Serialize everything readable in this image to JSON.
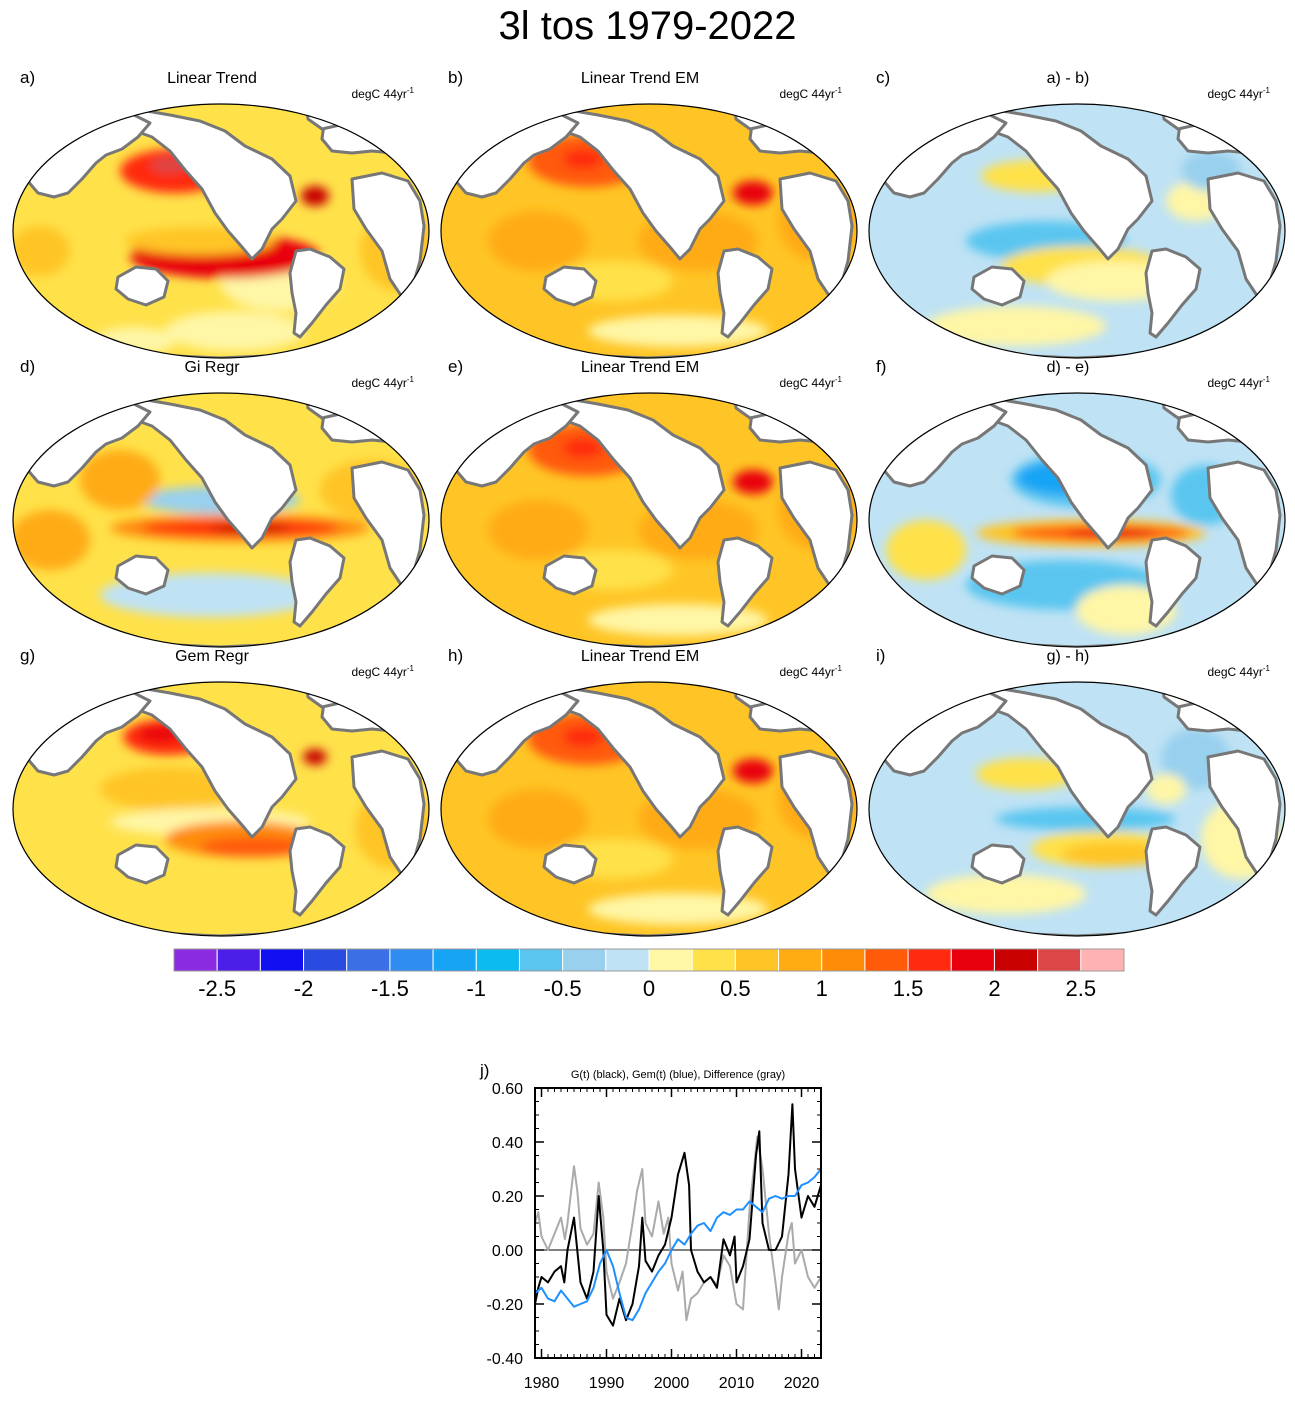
{
  "title": "3l tos 1979-2022",
  "units_prefix": "degC 44yr",
  "units_superscript": "-1",
  "panels": [
    {
      "label": "a)",
      "title": "Linear Trend",
      "pattern": "trend"
    },
    {
      "label": "b)",
      "title": "Linear Trend EM",
      "pattern": "em"
    },
    {
      "label": "c)",
      "title": "a) - b)",
      "pattern": "diff_ab"
    },
    {
      "label": "d)",
      "title": "Gi Regr",
      "pattern": "gi"
    },
    {
      "label": "e)",
      "title": "Linear Trend EM",
      "pattern": "em"
    },
    {
      "label": "f)",
      "title": "d) - e)",
      "pattern": "diff_de"
    },
    {
      "label": "g)",
      "title": "Gem Regr",
      "pattern": "gem"
    },
    {
      "label": "h)",
      "title": "Linear Trend EM",
      "pattern": "em"
    },
    {
      "label": "i)",
      "title": "g) - h)",
      "pattern": "diff_gh"
    }
  ],
  "colorbar": {
    "colors": [
      "#8a2be2",
      "#4b1fe8",
      "#1010f0",
      "#2a4be0",
      "#3a6fe6",
      "#2f8cf0",
      "#18a4f5",
      "#0cbcf0",
      "#5ac6f0",
      "#98d0ee",
      "#bfe2f4",
      "#fff6a6",
      "#ffe14a",
      "#ffc526",
      "#ffab12",
      "#ff8c08",
      "#ff5a08",
      "#ff2a10",
      "#e8000e",
      "#c80000",
      "#dc4646",
      "#ffb2b2"
    ],
    "tick_labels": [
      "-2.5",
      "-2",
      "-1.5",
      "-1",
      "-0.5",
      "0",
      "0.5",
      "1",
      "1.5",
      "2",
      "2.5"
    ]
  },
  "chart_data": [
    {
      "type": "line",
      "label": "j)",
      "title": "G(t)  (black), Gem(t) (blue), Difference (gray)",
      "x_ticks": [
        1980,
        1990,
        2000,
        2010,
        2020
      ],
      "y_ticks": [
        "0.60",
        "0.40",
        "0.20",
        "0.00",
        "-0.20",
        "-0.40"
      ],
      "xlim": [
        1979,
        2023
      ],
      "ylim": [
        -0.4,
        0.6
      ],
      "series": [
        {
          "color": "#aaaaaa",
          "x": [
            1979,
            1979.5,
            1980,
            1981,
            1982,
            1983,
            1983.6,
            1984,
            1985,
            1985.5,
            1986,
            1987,
            1988,
            1988.8,
            1989.5,
            1990,
            1991,
            1992,
            1993,
            1994,
            1994.7,
            1995.5,
            1996,
            1997,
            1998,
            1998.8,
            1999.5,
            2000,
            2001,
            2001.7,
            2002.3,
            2003,
            2004,
            2005,
            2006,
            2007,
            2008,
            2009,
            2010,
            2011,
            2012,
            2013.2,
            2014,
            2015,
            2016,
            2016.5,
            2017,
            2018,
            2018.5,
            2019,
            2020,
            2021,
            2022,
            2023
          ],
          "y": [
            0.1,
            0.14,
            0.05,
            0.0,
            0.06,
            0.12,
            0.04,
            0.1,
            0.31,
            0.22,
            0.08,
            0.02,
            0.06,
            0.25,
            0.12,
            -0.08,
            -0.18,
            -0.12,
            -0.05,
            0.1,
            0.22,
            0.3,
            0.1,
            0.05,
            0.18,
            0.06,
            0.12,
            -0.05,
            -0.15,
            -0.08,
            -0.26,
            -0.18,
            -0.16,
            -0.12,
            -0.1,
            -0.13,
            -0.02,
            -0.06,
            -0.2,
            -0.22,
            0.15,
            0.42,
            0.3,
            0.06,
            -0.12,
            -0.22,
            -0.1,
            0.06,
            0.1,
            -0.05,
            0.0,
            -0.1,
            -0.14,
            -0.1
          ]
        },
        {
          "color": "#000000",
          "x": [
            1979,
            1979.5,
            1980,
            1981,
            1982,
            1983,
            1983.5,
            1984,
            1985,
            1986,
            1987,
            1988,
            1988.8,
            1989.5,
            1990,
            1991,
            1992,
            1993,
            1994,
            1995,
            1995.5,
            1996,
            1997,
            1998,
            1999,
            2000,
            2001,
            2002,
            2002.7,
            2003,
            2004,
            2005,
            2006,
            2007,
            2008,
            2009,
            2009.7,
            2010,
            2011,
            2012,
            2013,
            2013.5,
            2014,
            2015,
            2016,
            2017,
            2018,
            2018.6,
            2019,
            2020,
            2021,
            2022,
            2023
          ],
          "y": [
            -0.2,
            -0.14,
            -0.1,
            -0.12,
            -0.08,
            -0.06,
            -0.12,
            0.0,
            0.12,
            -0.12,
            -0.18,
            -0.08,
            0.2,
            0.0,
            -0.24,
            -0.28,
            -0.18,
            -0.26,
            -0.2,
            -0.06,
            0.12,
            -0.04,
            -0.08,
            -0.02,
            0.02,
            0.12,
            0.28,
            0.36,
            0.24,
            0.0,
            -0.08,
            -0.12,
            -0.1,
            -0.14,
            0.04,
            -0.02,
            0.05,
            -0.12,
            -0.06,
            0.04,
            0.35,
            0.44,
            0.1,
            0.0,
            0.0,
            0.05,
            0.28,
            0.54,
            0.3,
            0.12,
            0.2,
            0.16,
            0.24
          ]
        },
        {
          "color": "#1e90ff",
          "x": [
            1979,
            1980,
            1981,
            1982,
            1983,
            1984,
            1985,
            1986,
            1987,
            1988,
            1989,
            1990,
            1991,
            1992,
            1993,
            1994,
            1995,
            1996,
            1997,
            1998,
            1999,
            2000,
            2001,
            2002,
            2003,
            2004,
            2005,
            2006,
            2007,
            2008,
            2009,
            2010,
            2011,
            2012,
            2013,
            2014,
            2015,
            2016,
            2017,
            2018,
            2019,
            2020,
            2021,
            2022,
            2023
          ],
          "y": [
            -0.16,
            -0.14,
            -0.18,
            -0.19,
            -0.15,
            -0.18,
            -0.21,
            -0.2,
            -0.19,
            -0.14,
            -0.05,
            0.0,
            -0.06,
            -0.16,
            -0.25,
            -0.26,
            -0.22,
            -0.16,
            -0.12,
            -0.08,
            -0.05,
            0.0,
            0.04,
            0.02,
            0.06,
            0.09,
            0.1,
            0.07,
            0.12,
            0.14,
            0.13,
            0.15,
            0.15,
            0.18,
            0.16,
            0.14,
            0.19,
            0.2,
            0.19,
            0.2,
            0.2,
            0.24,
            0.25,
            0.27,
            0.3
          ]
        }
      ]
    }
  ]
}
